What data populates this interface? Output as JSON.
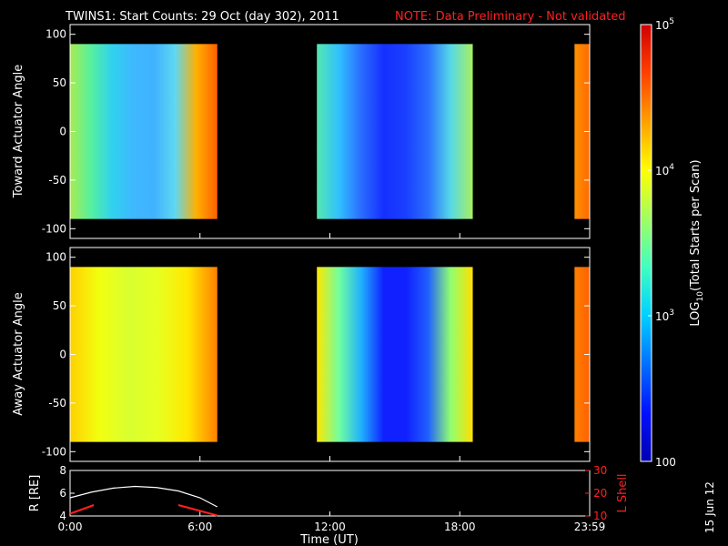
{
  "title": {
    "main": "TWINS1: Start Counts: 29 Oct (day 302), 2011",
    "note": "NOTE: Data Preliminary - Not validated"
  },
  "date_stamp": "15 Jun 12",
  "chart_data": [
    {
      "type": "heatmap",
      "name": "toward",
      "ylabel": "Toward Actuator Angle",
      "ylim": [
        -110,
        110
      ],
      "yticks": [
        "100",
        "50",
        "0",
        "-50",
        "-100"
      ],
      "data_range": [
        -90,
        90
      ],
      "x_range_hours": [
        0,
        24
      ],
      "segments": [
        {
          "start": 0.0,
          "end": 6.8,
          "stops": [
            "#a8ec50",
            "#55f0a0",
            "#30d2ee",
            "#3eb8ff",
            "#40b2ff",
            "#5fd8f0",
            "#ffb000",
            "#ff6000"
          ]
        },
        {
          "start": 11.4,
          "end": 18.6,
          "stops": [
            "#55e8b0",
            "#30c0ff",
            "#2a6cff",
            "#1530ff",
            "#1a40ff",
            "#2a70ff",
            "#55d8e8",
            "#a8f060"
          ]
        },
        {
          "start": 23.3,
          "end": 24.0,
          "stops": [
            "#ff9000",
            "#ff6a00"
          ]
        }
      ]
    },
    {
      "type": "heatmap",
      "name": "away",
      "ylabel": "Away Actuator Angle",
      "ylim": [
        -110,
        110
      ],
      "yticks": [
        "100",
        "50",
        "0",
        "-50",
        "-100"
      ],
      "data_range": [
        -90,
        90
      ],
      "x_range_hours": [
        0,
        24
      ],
      "segments": [
        {
          "start": 0.0,
          "end": 6.8,
          "stops": [
            "#ffd000",
            "#f2ff10",
            "#d8ff30",
            "#e8ff20",
            "#ffe800",
            "#ff8000"
          ]
        },
        {
          "start": 11.4,
          "end": 18.6,
          "stops": [
            "#ffe800",
            "#70ffa0",
            "#20b0ff",
            "#1020ff",
            "#1020ff",
            "#2060ff",
            "#90ff70",
            "#ffe000"
          ]
        },
        {
          "start": 23.3,
          "end": 24.0,
          "stops": [
            "#ff8000",
            "#ff6000"
          ]
        }
      ]
    },
    {
      "type": "line",
      "name": "orbit",
      "ylabel_left": "R [RE]",
      "ylabel_right": "L Shell",
      "ylim_left": [
        4,
        8
      ],
      "yticks_left": [
        "8",
        "6",
        "4"
      ],
      "ylim_right": [
        10,
        30
      ],
      "yticks_right": [
        "30",
        "20",
        "10"
      ],
      "xlabel": "Time (UT)",
      "xticks": [
        "0:00",
        "6:00",
        "12:00",
        "18:00",
        "23:59"
      ],
      "xtick_hours": [
        0,
        6,
        12,
        18,
        24
      ],
      "series": [
        {
          "x": [
            0,
            1,
            2,
            3,
            4,
            5,
            6,
            6.8
          ],
          "y": [
            5.6,
            6.1,
            6.45,
            6.6,
            6.5,
            6.2,
            5.6,
            4.8
          ]
        },
        {
          "x": [
            0,
            1.1
          ],
          "y": [
            11.0,
            14.8
          ]
        },
        {
          "x": [
            5.0,
            6.8
          ],
          "y": [
            14.8,
            10.2
          ]
        }
      ]
    }
  ],
  "colorbar": {
    "label": "LOG10(Total Starts per Scan)",
    "label_base": "LOG",
    "label_sub": "10",
    "label_rest": "(Total Starts per Scan)",
    "ticks": [
      {
        "base": "10",
        "exp": "5",
        "value": 5
      },
      {
        "base": "10",
        "exp": "4",
        "value": 4
      },
      {
        "base": "10",
        "exp": "3",
        "value": 3
      },
      {
        "base": "100",
        "exp": "",
        "value": 2
      }
    ],
    "range": [
      2,
      5
    ],
    "colors": [
      "#0000b0",
      "#0010ff",
      "#0070ff",
      "#00d0ff",
      "#40ffc0",
      "#a0ff60",
      "#ffff00",
      "#ffa000",
      "#ff4000",
      "#d00000"
    ]
  }
}
